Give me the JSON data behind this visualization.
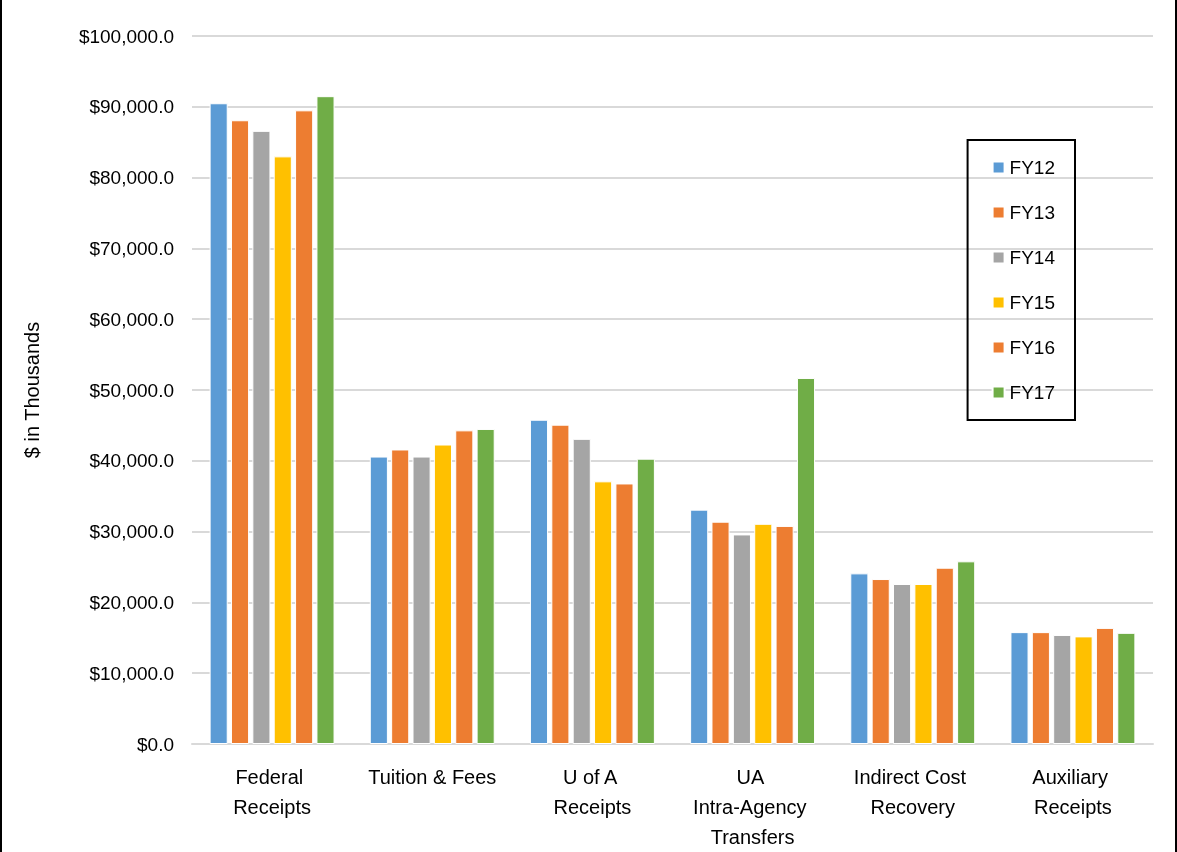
{
  "chart_data": {
    "type": "bar",
    "ylabel": "$ in Thousands",
    "categories": [
      "Federal Receipts",
      "Tuition & Fees",
      "U of A Receipts",
      "UA Intra-Agency Transfers",
      "Indirect Cost Recovery",
      "Auxiliary Receipts"
    ],
    "series": [
      {
        "name": "FY12",
        "color": "#5b9bd5",
        "values": [
          90500,
          40600,
          45800,
          33100,
          24100,
          15800
        ]
      },
      {
        "name": "FY13",
        "color": "#ed7d31",
        "values": [
          88100,
          41600,
          45100,
          31400,
          23300,
          15800
        ]
      },
      {
        "name": "FY14",
        "color": "#a5a5a5",
        "values": [
          86600,
          40600,
          43100,
          29600,
          22600,
          15400
        ]
      },
      {
        "name": "FY15",
        "color": "#ffc000",
        "values": [
          83000,
          42300,
          37100,
          31100,
          22600,
          15200
        ]
      },
      {
        "name": "FY16",
        "color": "#ed7d31",
        "values": [
          89500,
          44300,
          36800,
          30800,
          24900,
          16400
        ]
      },
      {
        "name": "FY17",
        "color": "#70ad47",
        "values": [
          91500,
          44500,
          40300,
          51700,
          25800,
          15700
        ]
      }
    ],
    "ylim": [
      0,
      100000
    ],
    "yticks": [
      {
        "value": 0,
        "label": "$0.0"
      },
      {
        "value": 10000,
        "label": "$10,000.0"
      },
      {
        "value": 20000,
        "label": "$20,000.0"
      },
      {
        "value": 30000,
        "label": "$30,000.0"
      },
      {
        "value": 40000,
        "label": "$40,000.0"
      },
      {
        "value": 50000,
        "label": "$50,000.0"
      },
      {
        "value": 60000,
        "label": "$60,000.0"
      },
      {
        "value": 70000,
        "label": "$70,000.0"
      },
      {
        "value": 80000,
        "label": "$80,000.0"
      },
      {
        "value": 90000,
        "label": "$90,000.0"
      },
      {
        "value": 100000,
        "label": "$100,000.0"
      }
    ],
    "grid": "y",
    "legend": "top right"
  }
}
